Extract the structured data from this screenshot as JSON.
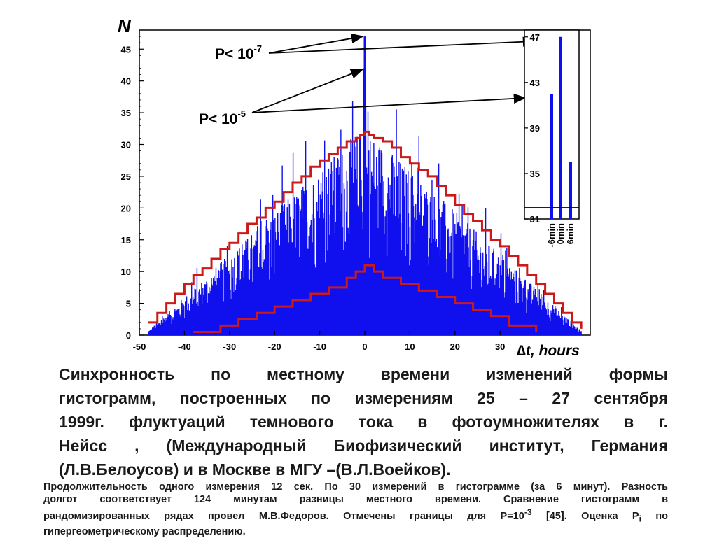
{
  "chart_data": [
    {
      "type": "bar",
      "axis_symbol": "N",
      "xlabel": "∆t, hours",
      "x_ticks": [
        -50,
        -40,
        -30,
        -20,
        -10,
        0,
        10,
        20,
        30
      ],
      "y_ticks": [
        0,
        5,
        10,
        15,
        20,
        25,
        30,
        35,
        40,
        45
      ],
      "xlim": [
        -50,
        50
      ],
      "ylim": [
        0,
        48
      ],
      "grid": false,
      "series": [
        {
          "name": "histogram_counts",
          "color": "#1010ee",
          "x_start": -48,
          "x_end": 48,
          "x_step": 0.1,
          "peak_values": [
            {
              "x": -0.1,
              "y": 42
            },
            {
              "x": 0.0,
              "y": 47
            },
            {
              "x": 0.1,
              "y": 36
            }
          ],
          "envelope_shape": "triangular, max about 33 at x=0, falling to about 2 at x=±48"
        },
        {
          "name": "upper_bound",
          "color": "#cc1a1a",
          "x": [
            -48,
            -46,
            -44,
            -42,
            -40,
            -38,
            -36,
            -34,
            -32,
            -30,
            -28,
            -26,
            -24,
            -22,
            -20,
            -18,
            -16,
            -14,
            -12,
            -10,
            -8,
            -6,
            -4,
            -2,
            -1,
            0,
            1,
            2,
            4,
            6,
            8,
            10,
            12,
            14,
            16,
            18,
            20,
            22,
            24,
            26,
            28,
            30,
            32,
            34,
            36,
            38,
            40,
            42,
            44,
            46,
            48
          ],
          "y": [
            2,
            3.5,
            5,
            6.5,
            8,
            9.5,
            10.5,
            12,
            13.5,
            14.5,
            16,
            17.5,
            18.5,
            20,
            21,
            22.5,
            24,
            25,
            26.5,
            27.5,
            28.5,
            29.5,
            30.5,
            31,
            31.5,
            32,
            31.5,
            31,
            30.5,
            29.5,
            28,
            27,
            26,
            25,
            23.5,
            22,
            20.5,
            19,
            18,
            16.5,
            15,
            14,
            12.5,
            11,
            9.5,
            8,
            6.5,
            5,
            3.5,
            2,
            1
          ]
        },
        {
          "name": "lower_bound",
          "color": "#cc1a1a",
          "x": [
            -38,
            -32,
            -28,
            -24,
            -20,
            -16,
            -12,
            -8,
            -4,
            -2,
            0,
            2,
            4,
            8,
            12,
            16,
            20,
            24,
            28,
            32,
            38
          ],
          "y": [
            0.5,
            1.5,
            2.5,
            3.5,
            4.5,
            5.5,
            6.5,
            7.5,
            9,
            10,
            11,
            10,
            9,
            8,
            7,
            6,
            5,
            4,
            3,
            1.5,
            0.5
          ]
        }
      ],
      "annotations": [
        {
          "base": "P< 10",
          "exponent": "-7"
        },
        {
          "base": "P< 10",
          "exponent": "-5"
        }
      ]
    },
    {
      "type": "bar",
      "role": "inset",
      "categories": [
        "-6min",
        "0min",
        "6min"
      ],
      "values": [
        42,
        47,
        36
      ],
      "y_ticks": [
        31,
        35,
        39,
        43,
        47
      ],
      "ylim": [
        31,
        47.6
      ],
      "baseline": 32,
      "color": "#1010ee"
    }
  ],
  "caption": {
    "main_lines": [
      "Синхронность по местному времени изменений формы",
      "гистограмм, построенных по измерениям  25 – 27 сентября",
      "1999г. флуктуаций  темнового тока в фотоумножителях в г.",
      "Нейсс , (Международный Биофизический институт, Германия",
      "(Л.В.Белоусов) и в Москве в МГУ –(В.Л.Воейков)."
    ],
    "note_line1": "Продолжительность одного измерения 12 сек. По 30 измерений в гистограмме (за 6 минут). Разность",
    "note_line2": "долгот соответствует 124 минутам разницы местного времени. Сравнение гистограмм в",
    "note_line3_a": "рандомизированных рядах провел  М.В.Федоров. Отмечены границы для Р=10",
    "note_line3_sup": "-3",
    "note_line3_b": " [45]. Оценка P",
    "note_line3_sub": "i",
    "note_line3_c": " по",
    "note_line4": "гипергеометрическому распределению."
  }
}
